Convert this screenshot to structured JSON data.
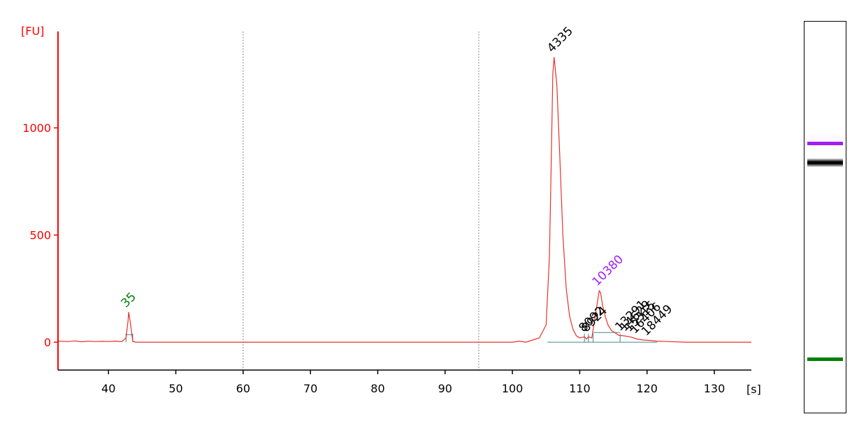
{
  "chart_data": {
    "type": "line",
    "title": "",
    "xlabel": "[s]",
    "ylabel": "[FU]",
    "xlim": [
      32.5,
      135.5
    ],
    "ylim": [
      -130,
      1450
    ],
    "x_ticks": [
      40,
      50,
      60,
      70,
      80,
      90,
      100,
      110,
      120,
      130
    ],
    "y_ticks": [
      0,
      500,
      1000
    ],
    "vertical_guides": [
      60,
      95
    ],
    "colors": {
      "axis": "#ff0000",
      "trace": "#e8302a",
      "ladder_marker": "#008000",
      "upper_marker": "#a020f0",
      "peak_label": "#000000",
      "guide": "#888888",
      "baseline": "#3a8a8a"
    },
    "series": [
      {
        "x": [
          32.5,
          34,
          35,
          36,
          37,
          38,
          39,
          40,
          41,
          42,
          42.6,
          42.9,
          43.0,
          43.2,
          43.6,
          44,
          45,
          45.8,
          47,
          55,
          70,
          85,
          95,
          100,
          101,
          102,
          103,
          104,
          105,
          105.5,
          105.8,
          106.0,
          106.2,
          106.6,
          107,
          107.5,
          108,
          108.5,
          109,
          109.5,
          110,
          110.7,
          111.0,
          111.3,
          111.8,
          112.3,
          112.6,
          112.9,
          113.1,
          113.4,
          113.8,
          114.2,
          114.7,
          115.2,
          115.8,
          116.5,
          117.5,
          118.5,
          119.5,
          120.5,
          121.5,
          123,
          126,
          130,
          135.5
        ],
        "y": [
          5,
          3,
          6,
          2,
          5,
          3,
          4,
          3,
          5,
          3,
          20,
          100,
          140,
          100,
          5,
          0,
          0,
          0,
          0,
          0,
          0,
          0,
          0,
          0,
          5,
          0,
          10,
          20,
          80,
          400,
          900,
          1250,
          1330,
          1200,
          900,
          500,
          250,
          120,
          60,
          30,
          20,
          25,
          15,
          25,
          20,
          120,
          180,
          240,
          230,
          170,
          120,
          80,
          55,
          45,
          32,
          30,
          25,
          15,
          10,
          8,
          5,
          3,
          0,
          0,
          0
        ]
      }
    ],
    "peak_labels": [
      {
        "x": 43.0,
        "y": 140,
        "label": "35",
        "role": "lower-marker"
      },
      {
        "x": 106.3,
        "y": 1330,
        "label": "4335",
        "role": "peak"
      },
      {
        "x": 111.0,
        "y": 25,
        "label": "8092",
        "role": "peak"
      },
      {
        "x": 111.4,
        "y": 25,
        "label": "8924",
        "role": "peak"
      },
      {
        "x": 113.0,
        "y": 240,
        "label": "10380",
        "role": "upper-marker"
      },
      {
        "x": 116.4,
        "y": 30,
        "label": "13291",
        "role": "peak"
      },
      {
        "x": 117.1,
        "y": 28,
        "label": "14629",
        "role": "peak"
      },
      {
        "x": 117.8,
        "y": 26,
        "label": "15315",
        "role": "peak"
      },
      {
        "x": 118.6,
        "y": 18,
        "label": "16406",
        "role": "peak"
      },
      {
        "x": 120.3,
        "y": 8,
        "label": "18449",
        "role": "peak"
      }
    ]
  },
  "gel": {
    "bands": [
      {
        "position": 0.31,
        "color": "#a020f0",
        "role": "upper-marker"
      },
      {
        "position": 0.36,
        "color": "#000000",
        "role": "main-band"
      },
      {
        "position": 0.86,
        "color": "#008000",
        "role": "lower-marker"
      }
    ]
  }
}
